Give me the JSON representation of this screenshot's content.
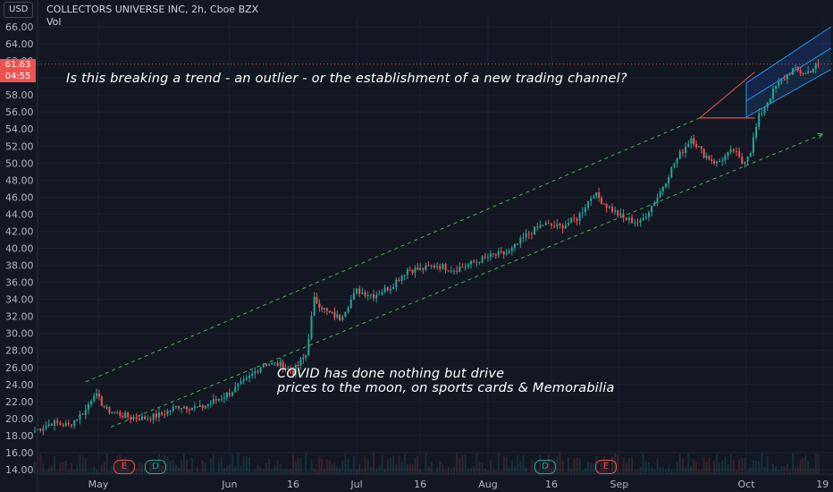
{
  "header": {
    "title": "COLLECTORS UNIVERSE INC, 2h, Cboe BZX",
    "volume_label": "Vol",
    "currency": "USD"
  },
  "price_tags": {
    "last_price": "61.63",
    "countdown": "04:55",
    "last_color": "#ef5350",
    "countdown_color": "#ef5350"
  },
  "annotations": {
    "top": "Is this breaking a trend - an outlier - or the establishment of a new trading channel?",
    "bottom_line1": "COVID has done nothing but drive",
    "bottom_line2": "prices to the moon, on sports cards & Memorabilia"
  },
  "events": [
    {
      "label": "E",
      "color": "#ef5350"
    },
    {
      "label": "D",
      "color": "#26a69a"
    },
    {
      "label": "D",
      "color": "#26a69a"
    },
    {
      "label": "E",
      "color": "#ef5350"
    }
  ],
  "chart_data": {
    "type": "candlestick",
    "title": "COLLECTORS UNIVERSE INC, 2h, Cboe BZX",
    "ylim": [
      13,
      67
    ],
    "y_ticks": [
      "14.00",
      "16.00",
      "18.00",
      "20.00",
      "22.00",
      "24.00",
      "26.00",
      "28.00",
      "30.00",
      "32.00",
      "34.00",
      "36.00",
      "38.00",
      "40.00",
      "42.00",
      "44.00",
      "46.00",
      "48.00",
      "50.00",
      "52.00",
      "54.00",
      "56.00",
      "58.00",
      "60.00",
      "62.00",
      "64.00",
      "66.00"
    ],
    "x_ticks": [
      "May",
      "Jun",
      "16",
      "Jul",
      "16",
      "Aug",
      "16",
      "Sep",
      "Oct",
      "19"
    ],
    "up_color": "#26a69a",
    "down_color": "#ef5350",
    "path": [
      [
        "Apr 16",
        18.6
      ],
      [
        "Apr 20",
        19.5
      ],
      [
        "Apr 24",
        19.2
      ],
      [
        "Apr 28",
        21.0
      ],
      [
        "Apr 30",
        23.0
      ],
      [
        "May 3",
        21.0
      ],
      [
        "May 8",
        20.2
      ],
      [
        "May 12",
        20.0
      ],
      [
        "May 16",
        20.5
      ],
      [
        "May 20",
        21.5
      ],
      [
        "May 25",
        21.2
      ],
      [
        "Jun 1",
        23.0
      ],
      [
        "Jun 5",
        24.5
      ],
      [
        "Jun 9",
        26.5
      ],
      [
        "Jun 13",
        26.3
      ],
      [
        "Jun 16",
        25.5
      ],
      [
        "Jun 19",
        27.5
      ],
      [
        "Jun 21",
        34.0
      ],
      [
        "Jun 24",
        32.5
      ],
      [
        "Jun 27",
        31.8
      ],
      [
        "Jul 1",
        35.0
      ],
      [
        "Jul 5",
        34.5
      ],
      [
        "Jul 9",
        35.5
      ],
      [
        "Jul 13",
        37.5
      ],
      [
        "Jul 16",
        37.5
      ],
      [
        "Jul 20",
        38.0
      ],
      [
        "Jul 24",
        37.5
      ],
      [
        "Jul 28",
        38.2
      ],
      [
        "Aug 1",
        39.0
      ],
      [
        "Aug 6",
        39.5
      ],
      [
        "Aug 10",
        41.5
      ],
      [
        "Aug 14",
        42.8
      ],
      [
        "Aug 18",
        42.5
      ],
      [
        "Aug 22",
        43.5
      ],
      [
        "Aug 26",
        46.5
      ],
      [
        "Aug 29",
        45.0
      ],
      [
        "Sep 2",
        43.5
      ],
      [
        "Sep 6",
        43.0
      ],
      [
        "Sep 10",
        46.0
      ],
      [
        "Sep 14",
        50.0
      ],
      [
        "Sep 18",
        53.0
      ],
      [
        "Sep 21",
        51.0
      ],
      [
        "Sep 24",
        50.0
      ],
      [
        "Sep 28",
        51.5
      ],
      [
        "Sep 30",
        50.0
      ],
      [
        "Oct 2",
        51.5
      ],
      [
        "Oct 4",
        55.5
      ],
      [
        "Oct 8",
        59.0
      ],
      [
        "Oct 12",
        61.0
      ],
      [
        "Oct 15",
        60.5
      ],
      [
        "Oct 18",
        61.6
      ]
    ],
    "x_range": [
      "Apr 14",
      "Oct 20"
    ],
    "trend_channel": {
      "upper": [
        [
          "Apr 28",
          24.3
        ],
        [
          "Sep 20",
          55.3
        ]
      ],
      "lower": [
        [
          "May 4",
          19.0
        ],
        [
          "Oct 19",
          53.4
        ]
      ]
    },
    "parallel_channel": {
      "upper": [
        [
          "Oct 1",
          59.4
        ],
        [
          "Oct 21",
          66.0
        ]
      ],
      "middle": [
        [
          "Oct 1",
          57.3
        ],
        [
          "Oct 21",
          63.5
        ]
      ],
      "lower": [
        [
          "Oct 1",
          55.4
        ],
        [
          "Oct 21",
          61.0
        ]
      ]
    },
    "fan_lines": {
      "apex": [
        "Sep 20",
        55.3
      ],
      "to_upper": [
        "Oct 3",
        60.7
      ],
      "to_lower": [
        "Oct 3",
        55.3
      ]
    }
  }
}
